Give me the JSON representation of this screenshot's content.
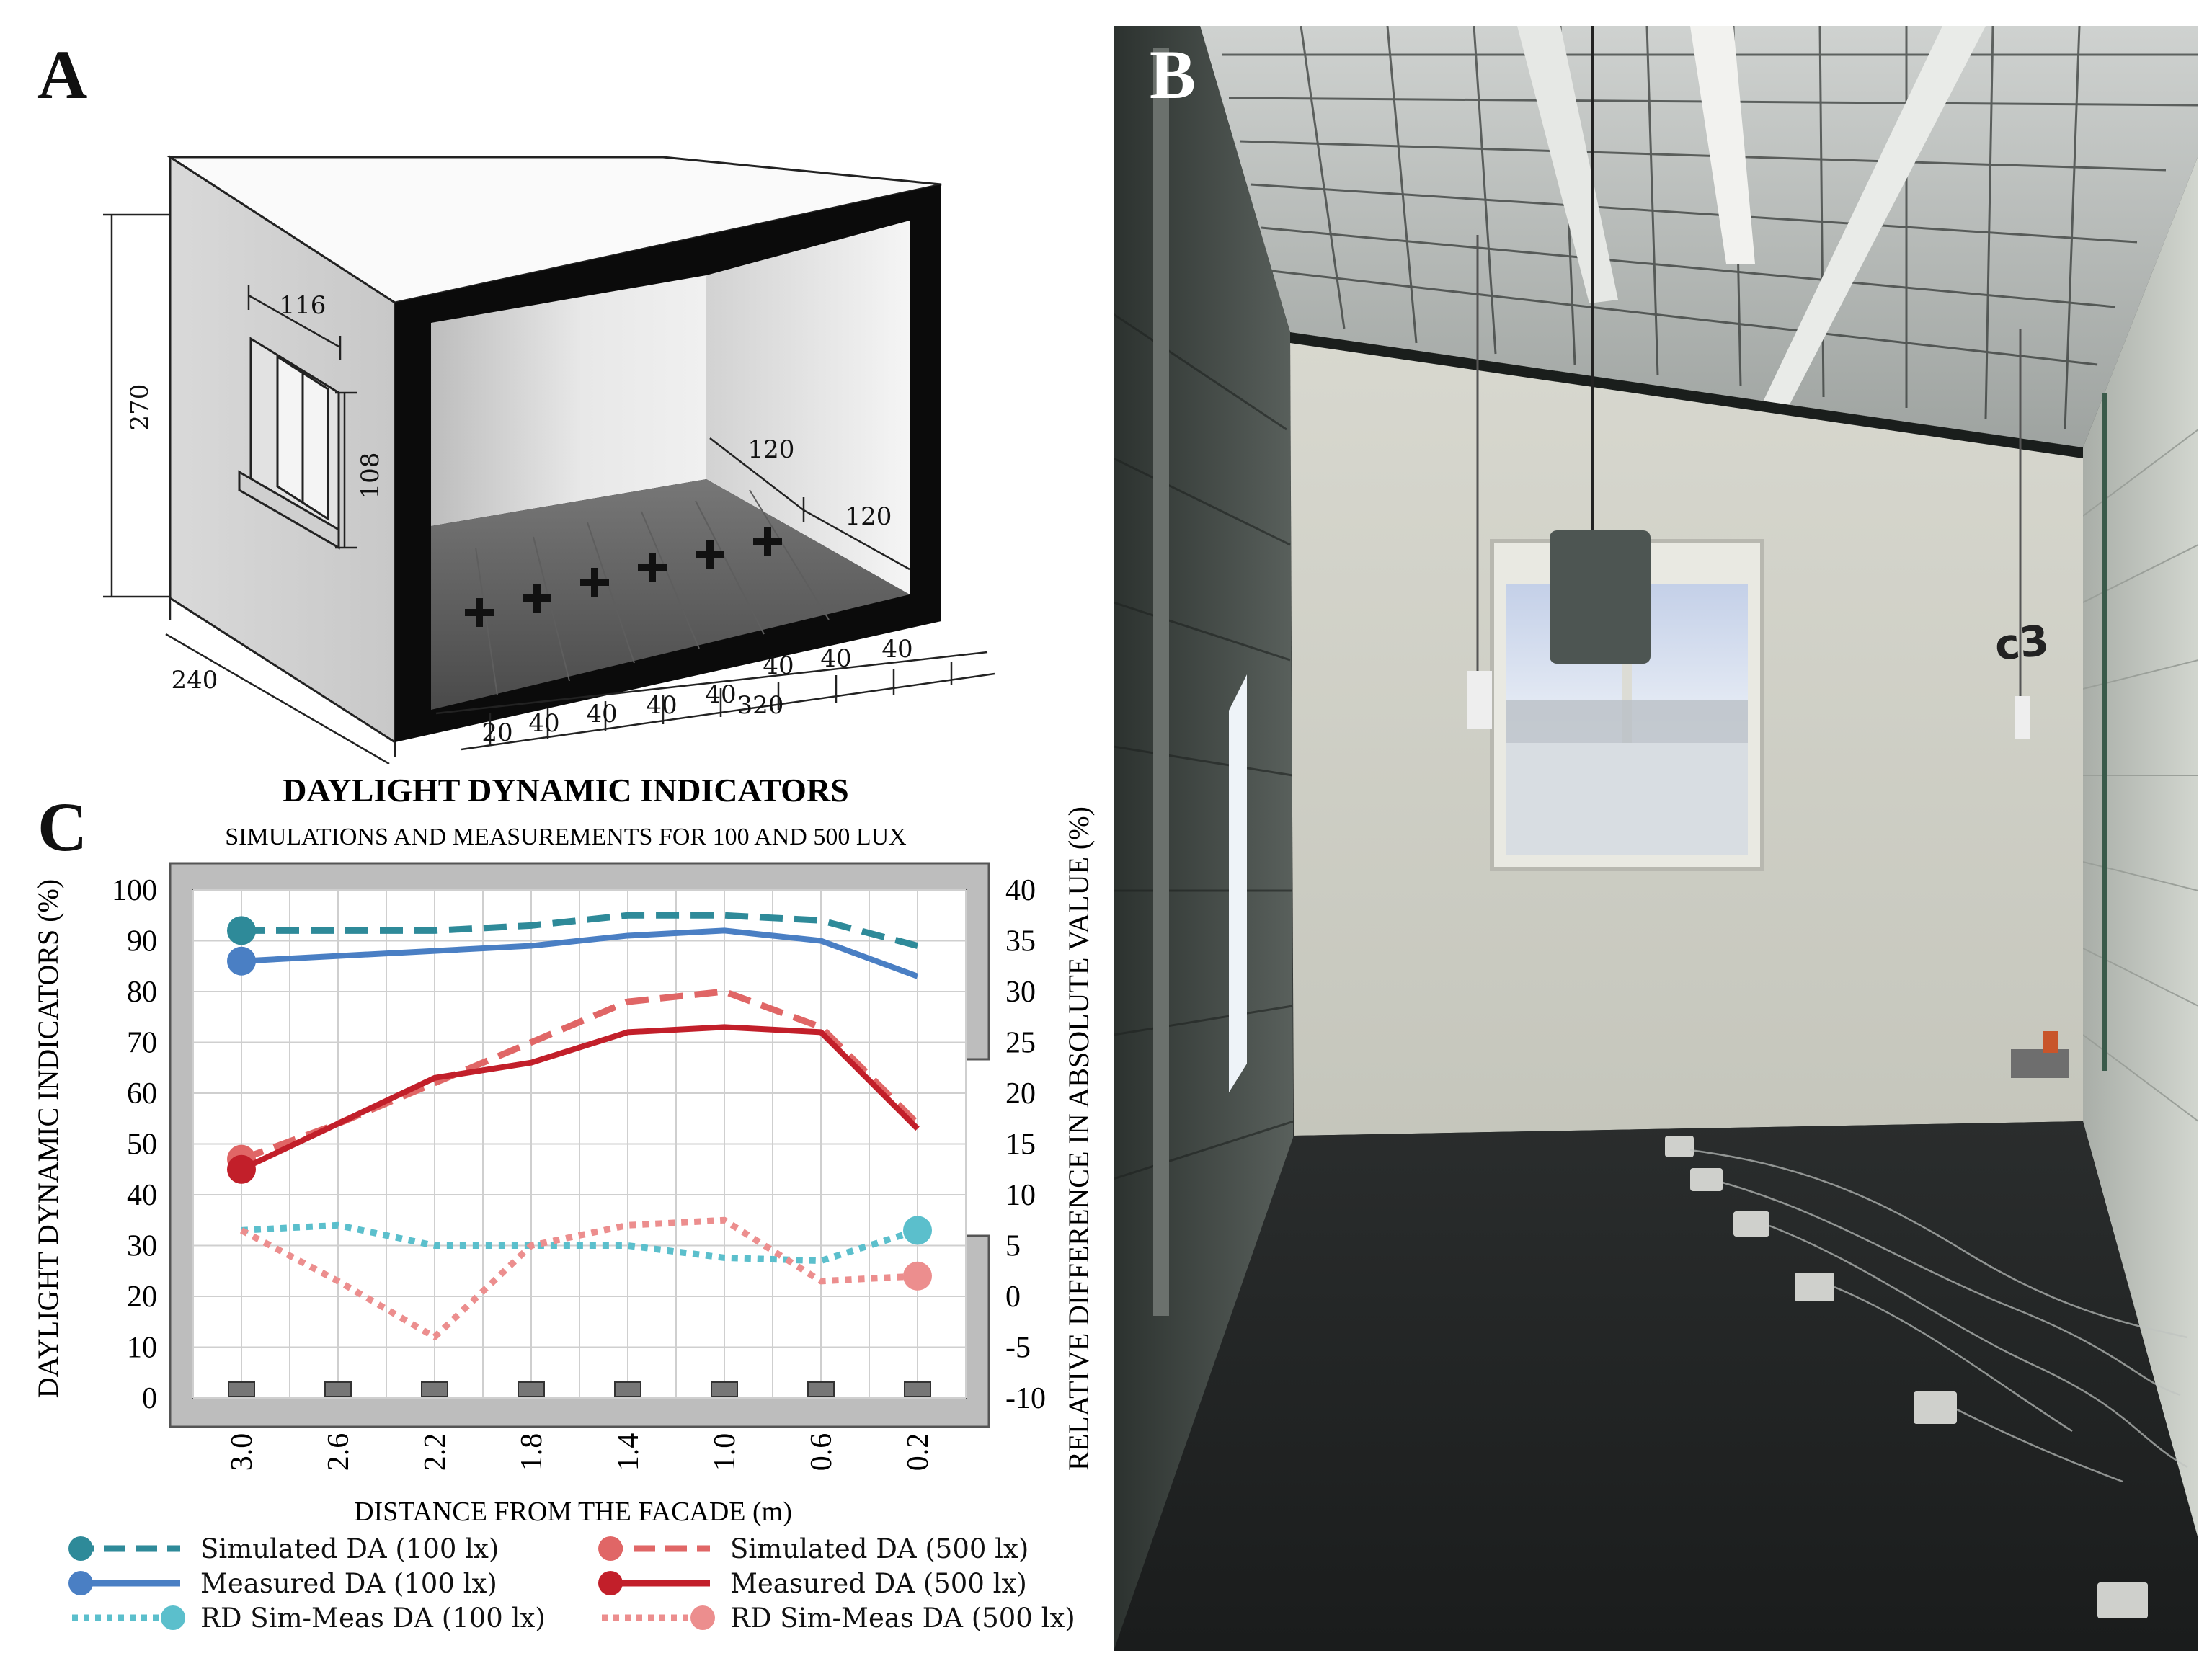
{
  "panels": {
    "a": {
      "letter": "A"
    },
    "b": {
      "letter": "B",
      "room_label": "c3"
    },
    "c": {
      "letter": "C"
    }
  },
  "dimensions": {
    "height": "270",
    "depth": "240",
    "window_width": "116",
    "window_height": "108",
    "inner_side": "120",
    "inner_back": "120",
    "spacing_20": "20",
    "spacing_40": "40",
    "total_320": "320"
  },
  "chart_data": {
    "type": "line",
    "title": "DAYLIGHT DYNAMIC INDICATORS",
    "subtitle": "SIMULATIONS AND MEASUREMENTS FOR 100 AND 500 LUX",
    "xlabel": "DISTANCE FROM THE FACADE (m)",
    "ylabel": "DAYLIGHT DYNAMIC INDICATORS (%)",
    "y2label": "RELATIVE DIFFERENCE IN ABSOLUTE VALUE (%)",
    "x_ticks": [
      "3.0",
      "2.6",
      "2.2",
      "1.8",
      "1.4",
      "1.0",
      "0.6",
      "0.2"
    ],
    "x": [
      3.0,
      2.6,
      2.2,
      1.8,
      1.4,
      1.0,
      0.6,
      0.2
    ],
    "xlim": [
      3.2,
      0.0
    ],
    "ylim": [
      0,
      100
    ],
    "y_ticks": [
      0,
      10,
      20,
      30,
      40,
      50,
      60,
      70,
      80,
      90,
      100
    ],
    "y2lim": [
      -10,
      40
    ],
    "y2_ticks": [
      -10,
      -5,
      0,
      5,
      10,
      15,
      20,
      25,
      30,
      35,
      40
    ],
    "grid": true,
    "series": [
      {
        "name": "Simulated DA (100 lx)",
        "axis": "left",
        "style": "dashed",
        "color": "#2e8a99",
        "values": [
          92,
          92,
          92,
          93,
          95,
          95,
          94,
          89
        ]
      },
      {
        "name": "Measured DA (100 lx)",
        "axis": "left",
        "style": "solid",
        "color": "#4a7fc4",
        "values": [
          86,
          87,
          88,
          89,
          91,
          92,
          90,
          83
        ]
      },
      {
        "name": "RD Sim-Meas DA (100 lx)",
        "axis": "right",
        "style": "dotted",
        "color": "#5bbfcc",
        "values": [
          6.5,
          7,
          5,
          5,
          5,
          3.8,
          3.5,
          6.5
        ]
      },
      {
        "name": "Simulated DA (500 lx)",
        "axis": "left",
        "style": "dashed",
        "color": "#e06666",
        "values": [
          47,
          54,
          62,
          70,
          78,
          80,
          73,
          54
        ]
      },
      {
        "name": "Measured DA (500 lx)",
        "axis": "left",
        "style": "solid",
        "color": "#c21f2a",
        "values": [
          45,
          54,
          63,
          66,
          72,
          73,
          72,
          53
        ]
      },
      {
        "name": "RD Sim-Meas DA (500 lx)",
        "axis": "right",
        "style": "dotted",
        "color": "#ec8e8e",
        "values": [
          6.5,
          1.5,
          -4,
          5,
          7,
          7.5,
          1.5,
          2
        ]
      }
    ],
    "legend": "bottom"
  },
  "colors": {
    "teal_dark": "#2e8a99",
    "blue": "#4a7fc4",
    "teal_light": "#5bbfcc",
    "red_light": "#e06666",
    "red_dark": "#c21f2a",
    "pink": "#ec8e8e",
    "frame_gray": "#bdbdbd"
  }
}
